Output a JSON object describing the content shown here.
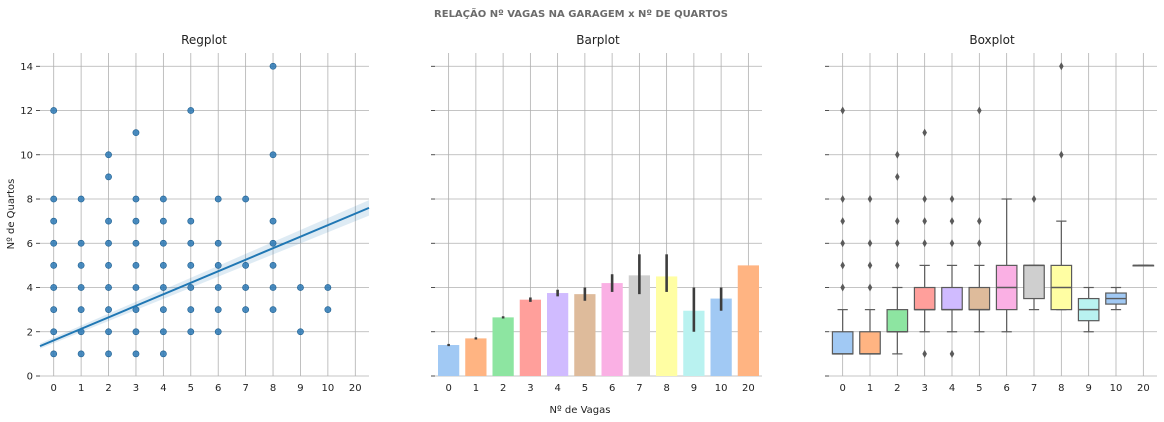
{
  "figure": {
    "suptitle": "RELAÇÃO Nº VAGAS NA GARAGEM x Nº DE QUARTOS",
    "xlabel": "Nº de Vagas",
    "ylabel": "Nº de Quartos"
  },
  "chart_data": [
    {
      "type": "scatter",
      "title": "Regplot",
      "categories": [
        "0",
        "1",
        "2",
        "3",
        "4",
        "5",
        "6",
        "7",
        "8",
        "9",
        "10",
        "20"
      ],
      "ylim": [
        0,
        14.6
      ],
      "yticks": [
        0,
        2,
        4,
        6,
        8,
        10,
        12,
        14
      ],
      "grid": true,
      "point_color": "#2a78b5",
      "points": [
        {
          "x": "0",
          "y": [
            1,
            2,
            3,
            4,
            5,
            6,
            7,
            8,
            12
          ]
        },
        {
          "x": "1",
          "y": [
            1,
            2,
            3,
            4,
            5,
            6,
            8
          ]
        },
        {
          "x": "2",
          "y": [
            1,
            2,
            3,
            4,
            5,
            6,
            7,
            9,
            10
          ]
        },
        {
          "x": "3",
          "y": [
            1,
            2,
            3,
            4,
            5,
            6,
            7,
            8,
            11
          ]
        },
        {
          "x": "4",
          "y": [
            1,
            2,
            3,
            4,
            5,
            6,
            7,
            8
          ]
        },
        {
          "x": "5",
          "y": [
            2,
            3,
            4,
            5,
            6,
            7,
            12
          ]
        },
        {
          "x": "6",
          "y": [
            2,
            3,
            4,
            5,
            6,
            8
          ]
        },
        {
          "x": "7",
          "y": [
            3,
            4,
            5,
            8
          ]
        },
        {
          "x": "8",
          "y": [
            3,
            4,
            5,
            6,
            7,
            10,
            14
          ]
        },
        {
          "x": "9",
          "y": [
            2,
            4
          ]
        },
        {
          "x": "10",
          "y": [
            3,
            4
          ]
        }
      ],
      "regression": {
        "start": 1.35,
        "end": 7.6,
        "color": "#1f77b4"
      }
    },
    {
      "type": "bar",
      "title": "Barplot",
      "categories": [
        "0",
        "1",
        "2",
        "3",
        "4",
        "5",
        "6",
        "7",
        "8",
        "9",
        "10",
        "20"
      ],
      "values": [
        1.4,
        1.7,
        2.65,
        3.45,
        3.75,
        3.7,
        4.2,
        4.55,
        4.5,
        2.95,
        3.5,
        5.0
      ],
      "ci": [
        [
          1.35,
          1.45
        ],
        [
          1.65,
          1.75
        ],
        [
          2.6,
          2.7
        ],
        [
          3.35,
          3.55
        ],
        [
          3.6,
          3.9
        ],
        [
          3.4,
          4.0
        ],
        [
          3.8,
          4.6
        ],
        [
          3.7,
          5.5
        ],
        [
          3.8,
          5.5
        ],
        [
          2.0,
          4.0
        ],
        [
          2.95,
          4.0
        ],
        [
          5.0,
          5.0
        ]
      ],
      "colors": [
        "#a1c9f4",
        "#ffb482",
        "#8de5a1",
        "#ff9f9b",
        "#d0bbff",
        "#debb9b",
        "#fab0e4",
        "#cfcfcf",
        "#fffea3",
        "#b9f2f0",
        "#a1c9f4",
        "#ffb482"
      ],
      "ylim": [
        0,
        14.6
      ],
      "grid": true
    },
    {
      "type": "box",
      "title": "Boxplot",
      "categories": [
        "0",
        "1",
        "2",
        "3",
        "4",
        "5",
        "6",
        "7",
        "8",
        "9",
        "10",
        "20"
      ],
      "boxes": [
        {
          "q1": 1,
          "med": 1,
          "q3": 2,
          "wlo": 1,
          "whi": 3,
          "fliers": [
            4,
            5,
            6,
            7,
            8,
            12
          ]
        },
        {
          "q1": 1,
          "med": 1,
          "q3": 2,
          "wlo": 1,
          "whi": 3,
          "fliers": [
            4,
            5,
            6,
            8
          ]
        },
        {
          "q1": 2,
          "med": 2,
          "q3": 3,
          "wlo": 1,
          "whi": 4,
          "fliers": [
            5,
            6,
            7,
            9,
            10
          ]
        },
        {
          "q1": 3,
          "med": 3,
          "q3": 4,
          "wlo": 2,
          "whi": 5,
          "fliers": [
            1,
            6,
            7,
            8,
            11
          ]
        },
        {
          "q1": 3,
          "med": 3,
          "q3": 4,
          "wlo": 2,
          "whi": 5,
          "fliers": [
            1,
            6,
            7,
            8
          ]
        },
        {
          "q1": 3,
          "med": 3,
          "q3": 4,
          "wlo": 2,
          "whi": 5,
          "fliers": [
            6,
            7,
            12
          ]
        },
        {
          "q1": 3,
          "med": 4,
          "q3": 5,
          "wlo": 2,
          "whi": 8,
          "fliers": []
        },
        {
          "q1": 3.5,
          "med": 5,
          "q3": 5,
          "wlo": 3,
          "whi": 5,
          "fliers": [
            8
          ]
        },
        {
          "q1": 3,
          "med": 4,
          "q3": 5,
          "wlo": 3,
          "whi": 7,
          "fliers": [
            10,
            14
          ]
        },
        {
          "q1": 2.5,
          "med": 3,
          "q3": 3.5,
          "wlo": 2,
          "whi": 4,
          "fliers": []
        },
        {
          "q1": 3.25,
          "med": 3.5,
          "q3": 3.75,
          "wlo": 3,
          "whi": 4,
          "fliers": []
        },
        {
          "q1": 5,
          "med": 5,
          "q3": 5,
          "wlo": 5,
          "whi": 5,
          "fliers": []
        }
      ],
      "colors": [
        "#a1c9f4",
        "#ffb482",
        "#8de5a1",
        "#ff9f9b",
        "#d0bbff",
        "#debb9b",
        "#fab0e4",
        "#cfcfcf",
        "#fffea3",
        "#b9f2f0",
        "#a1c9f4",
        "#ffb482"
      ],
      "ylim": [
        0,
        14.6
      ],
      "grid": true
    }
  ]
}
